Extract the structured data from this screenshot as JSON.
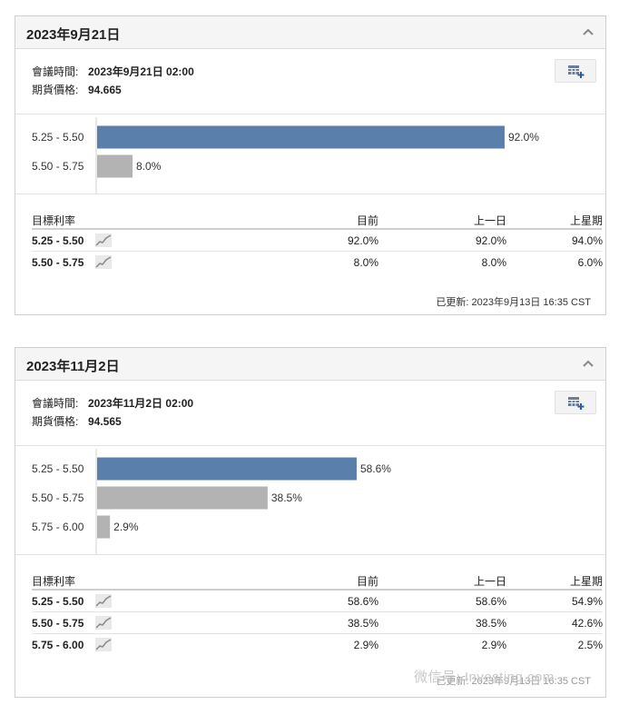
{
  "panels": [
    {
      "title": "2023年9月21日",
      "meeting_label": "會議時間:",
      "meeting_value": "2023年9月21日 02:00",
      "futures_label": "期貨價格:",
      "futures_value": "94.665",
      "table_headers": {
        "name": "目標利率",
        "current": "目前",
        "prev_day": "上一日",
        "prev_week": "上星期"
      },
      "rows": [
        {
          "name": "5.25 - 5.50",
          "current": "92.0%",
          "prev_day": "92.0%",
          "prev_week": "94.0%"
        },
        {
          "name": "5.50 - 5.75",
          "current": "8.0%",
          "prev_day": "8.0%",
          "prev_week": "6.0%"
        }
      ],
      "updated": "已更新: 2023年9月13日 16:35 CST"
    },
    {
      "title": "2023年11月2日",
      "meeting_label": "會議時間:",
      "meeting_value": "2023年11月2日 02:00",
      "futures_label": "期貨價格:",
      "futures_value": "94.565",
      "table_headers": {
        "name": "目標利率",
        "current": "目前",
        "prev_day": "上一日",
        "prev_week": "上星期"
      },
      "rows": [
        {
          "name": "5.25 - 5.50",
          "current": "58.6%",
          "prev_day": "58.6%",
          "prev_week": "54.9%"
        },
        {
          "name": "5.50 - 5.75",
          "current": "38.5%",
          "prev_day": "38.5%",
          "prev_week": "42.6%"
        },
        {
          "name": "5.75 - 6.00",
          "current": "2.9%",
          "prev_day": "2.9%",
          "prev_week": "2.5%"
        }
      ],
      "updated": "已更新: 2023年9月13日 16:35 CST"
    }
  ],
  "watermark": "微信号: Investing.com",
  "colors": {
    "highlight_bar": "#5b7fab",
    "other_bar": "#b3b3b3"
  },
  "chart_data": [
    {
      "type": "bar",
      "orientation": "horizontal",
      "categories": [
        "5.25 - 5.50",
        "5.50 - 5.75"
      ],
      "values": [
        92.0,
        8.0
      ],
      "value_labels": [
        "92.0%",
        "8.0%"
      ],
      "xlim": [
        0,
        100
      ]
    },
    {
      "type": "bar",
      "orientation": "horizontal",
      "categories": [
        "5.25 - 5.50",
        "5.50 - 5.75",
        "5.75 - 6.00"
      ],
      "values": [
        58.6,
        38.5,
        2.9
      ],
      "value_labels": [
        "58.6%",
        "38.5%",
        "2.9%"
      ],
      "xlim": [
        0,
        100
      ]
    }
  ]
}
